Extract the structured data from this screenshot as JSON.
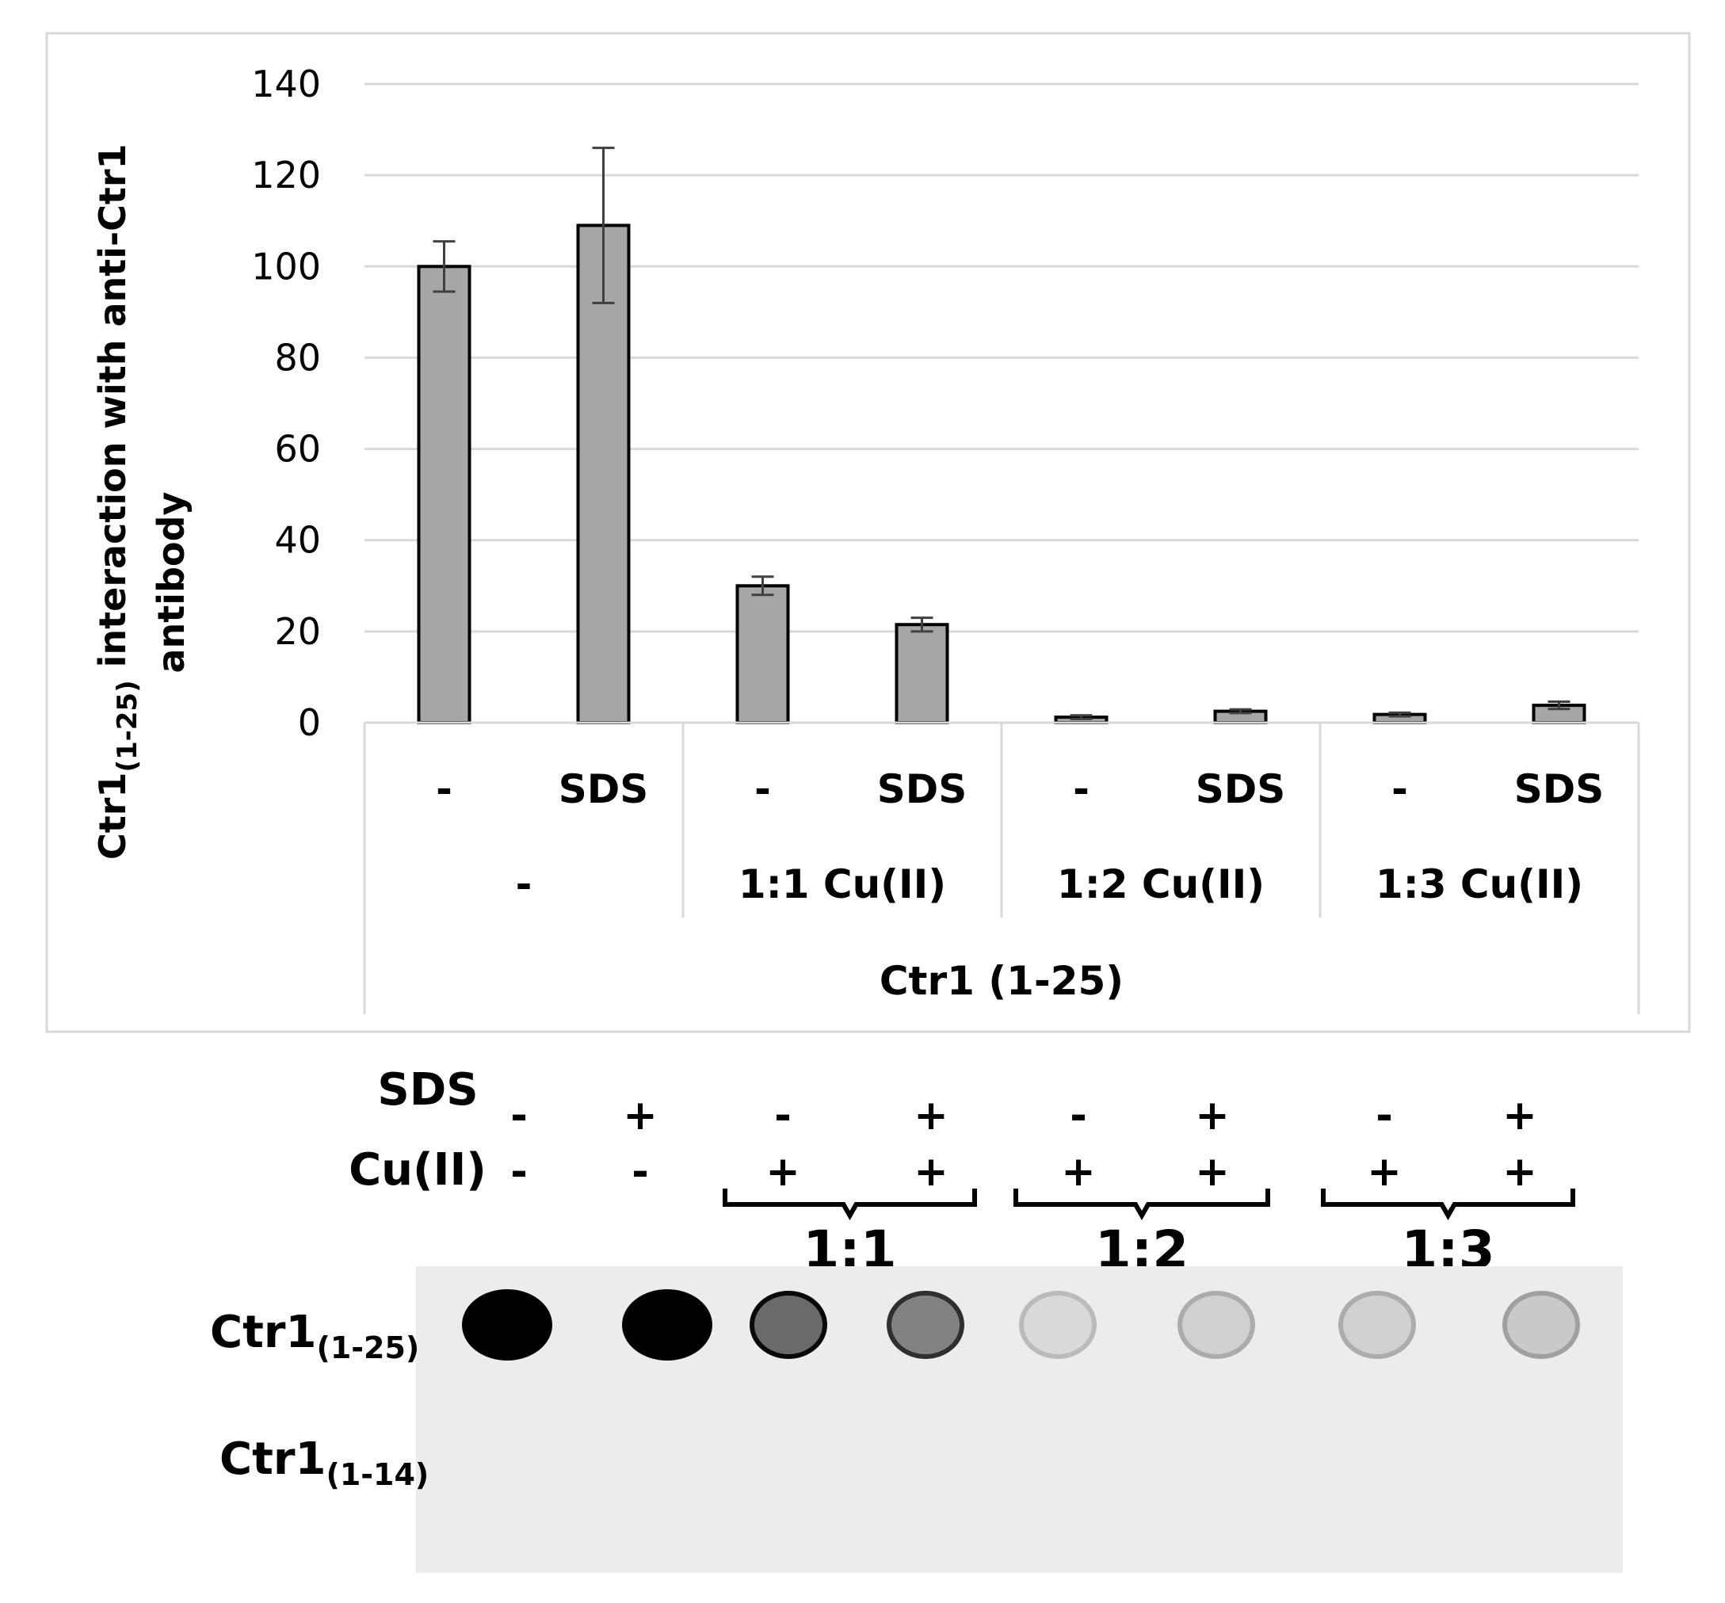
{
  "chart_data": {
    "type": "bar",
    "ylabel_main": "Ctr1",
    "ylabel_sub": "(1-25)",
    "ylabel_rest": " interaction with anti-Ctr1",
    "ylabel_line2": "antibody",
    "ylim": [
      0,
      140
    ],
    "yticks": [
      0,
      20,
      40,
      60,
      80,
      100,
      120,
      140
    ],
    "grid": true,
    "bar_color": "#a6a6a6",
    "categories": [
      "-",
      "SDS",
      "-",
      "SDS",
      "-",
      "SDS",
      "-",
      "SDS"
    ],
    "values": [
      100,
      109,
      30,
      21.5,
      1.2,
      2.5,
      1.8,
      3.8
    ],
    "errors": [
      5.5,
      17,
      2,
      1.5,
      0.4,
      0.4,
      0.4,
      0.8
    ],
    "groups": [
      "-",
      "1:1 Cu(II)",
      "1:2 Cu(II)",
      "1:3 Cu(II)"
    ],
    "xlabel": "Ctr1 (1-25)"
  },
  "blot": {
    "row_labels": {
      "sds": "SDS",
      "cu": "Cu(II)"
    },
    "sds_signs": [
      "-",
      "+",
      "-",
      "+",
      "-",
      "+",
      "-",
      "+"
    ],
    "cu_signs": [
      "-",
      "-",
      "+",
      "+",
      "+",
      "+",
      "+",
      "+"
    ],
    "ratios": [
      "1:1",
      "1:2",
      "1:3"
    ],
    "spot_rows": [
      {
        "main": "Ctr1",
        "sub": "(1-25)"
      },
      {
        "main": "Ctr1",
        "sub": "(1-14)"
      }
    ],
    "spot_intensity": [
      1.0,
      1.0,
      0.55,
      0.45,
      0.08,
      0.12,
      0.12,
      0.15
    ]
  }
}
